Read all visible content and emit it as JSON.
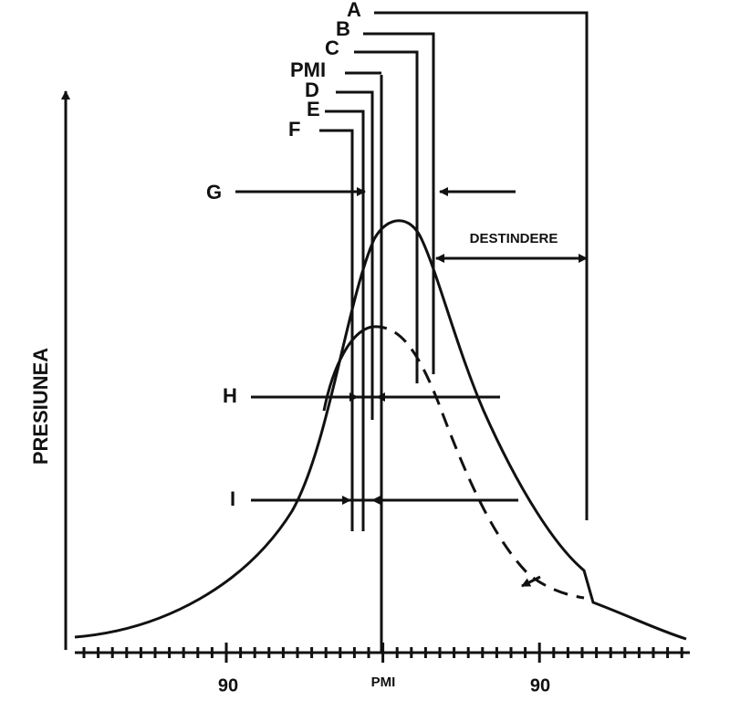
{
  "top_labels": [
    "A",
    "B",
    "C",
    "PMI",
    "D",
    "E",
    "F"
  ],
  "side_labels": [
    "G",
    "H",
    "I"
  ],
  "annotation": "DESTINDERE",
  "y_axis_label": "PRESIUNEA",
  "x_axis_labels": [
    "90",
    "PMI",
    "90"
  ]
}
